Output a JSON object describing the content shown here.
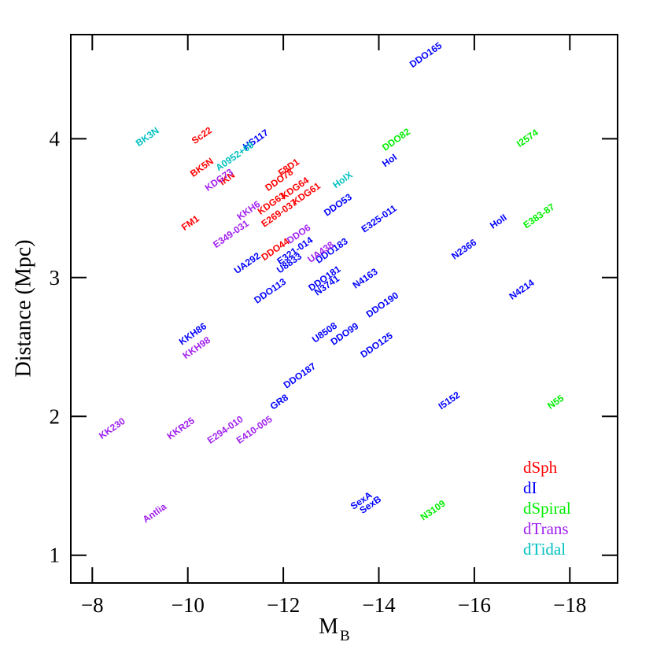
{
  "chart_data": {
    "type": "scatter",
    "xlabel": "M",
    "xlabel_sub": "B",
    "ylabel": "Distance (Mpc)",
    "xlim": [
      -7.55,
      -19.0
    ],
    "ylim": [
      0.8,
      4.75
    ],
    "xticks": [
      {
        "value": -8,
        "label": "−8"
      },
      {
        "value": -10,
        "label": "−10"
      },
      {
        "value": -12,
        "label": "−12"
      },
      {
        "value": -14,
        "label": "−14"
      },
      {
        "value": -16,
        "label": "−16"
      },
      {
        "value": -18,
        "label": "−18"
      }
    ],
    "yticks": [
      1,
      2,
      3,
      4
    ],
    "legend": "lower right",
    "series": [
      {
        "name": "dSph",
        "color": "#ff0000",
        "labels": [
          "Sc22",
          "BK5N",
          "FM1",
          "F8D1",
          "DDO78",
          "KDG64",
          "KDG61",
          "KDG63",
          "E269-037",
          "DDO44",
          "IKN"
        ],
        "x": [
          -10.3,
          -10.3,
          -10.06,
          -12.12,
          -11.92,
          -12.25,
          -12.49,
          -11.76,
          -11.92,
          -11.84,
          -10.83
        ],
        "values": [
          4.02,
          3.79,
          3.39,
          3.79,
          3.7,
          3.64,
          3.6,
          3.53,
          3.46,
          3.2,
          3.71
        ]
      },
      {
        "name": "dI",
        "color": "#0000ff",
        "labels": [
          "DDO165",
          "HS117",
          "HoI",
          "DDO53",
          "E325-011",
          "HoII",
          "N2366",
          "N4214",
          "UA292",
          "E321-014",
          "U8833",
          "DDO183",
          "DDO113",
          "DDO181",
          "N3741",
          "N4163",
          "DDO190",
          "U8508",
          "DDO99",
          "DDO125",
          "KKH86",
          "DDO187",
          "GR8",
          "I5152",
          "SexA",
          "SexB"
        ],
        "x": [
          -14.99,
          -11.43,
          -14.23,
          -13.15,
          -14.01,
          -16.51,
          -15.79,
          -17.0,
          -11.25,
          -12.25,
          -12.13,
          -13.02,
          -11.73,
          -12.87,
          -12.92,
          -13.72,
          -14.08,
          -12.87,
          -13.29,
          -13.96,
          -10.11,
          -12.35,
          -11.92,
          -15.48,
          -13.64,
          -13.83
        ],
        "values": [
          4.6,
          3.99,
          3.84,
          3.52,
          3.42,
          3.4,
          3.2,
          2.91,
          3.1,
          3.19,
          3.1,
          3.19,
          2.9,
          2.99,
          2.94,
          2.99,
          2.8,
          2.6,
          2.59,
          2.51,
          2.59,
          2.29,
          2.1,
          2.11,
          1.39,
          1.36
        ]
      },
      {
        "name": "dSpiral",
        "color": "#00ee00",
        "labels": [
          "DDO82",
          "I2574",
          "E383-87",
          "N55",
          "N3109"
        ],
        "x": [
          -14.37,
          -17.12,
          -17.36,
          -17.71,
          -15.14
        ],
        "values": [
          3.99,
          4.0,
          3.44,
          2.1,
          1.32
        ]
      },
      {
        "name": "dTrans",
        "color": "#a020f0",
        "labels": [
          "KDG73",
          "KKH6",
          "E349-031",
          "DDO6",
          "UA438",
          "KKH98",
          "KK230",
          "KKR25",
          "E294-010",
          "E410-005",
          "Antlia"
        ],
        "x": [
          -10.66,
          -11.28,
          -10.91,
          -12.33,
          -12.79,
          -10.19,
          -8.42,
          -9.86,
          -10.79,
          -11.4,
          -9.31
        ],
        "values": [
          3.7,
          3.48,
          3.31,
          3.31,
          3.18,
          2.49,
          1.91,
          1.91,
          1.9,
          1.9,
          1.3
        ]
      },
      {
        "name": "dTidal",
        "color": "#00c0c0",
        "labels": [
          "BK3N",
          "A0952+69",
          "HoIX"
        ],
        "x": [
          -9.16,
          -10.99,
          -13.25
        ],
        "values": [
          4.01,
          3.87,
          3.7
        ]
      }
    ]
  }
}
